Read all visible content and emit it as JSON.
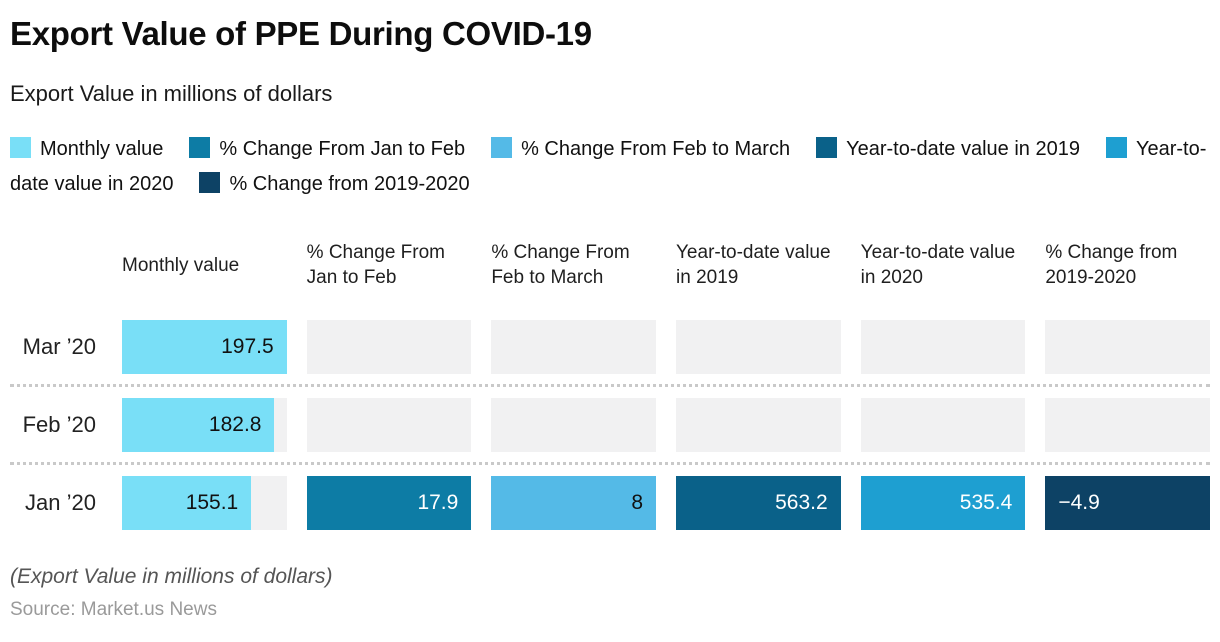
{
  "header": {
    "title": "Export Value of PPE During COVID-19",
    "subtitle": "Export Value in millions of dollars"
  },
  "legend": {
    "items": [
      {
        "label": "Monthly value",
        "color": "#79DFF7"
      },
      {
        "label": "% Change From Jan to Feb",
        "color": "#0D7CA5"
      },
      {
        "label": "% Change From Feb to March",
        "color": "#54BAE7"
      },
      {
        "label": "Year-to-date value in 2019",
        "color": "#0A6189"
      },
      {
        "label": "Year-to-date value in 2020",
        "color": "#1E9FD1"
      },
      {
        "label": "% Change from 2019-2020",
        "color": "#0D4265"
      }
    ]
  },
  "table": {
    "columns": [
      "Monthly value",
      "% Change From Jan to Feb",
      "% Change From Feb to March",
      "Year-to-date value in 2019",
      "Year-to-date value in 2020",
      "% Change from 2019-2020"
    ],
    "rows": [
      {
        "label": "Mar ’20",
        "cells": [
          {
            "value": "197.5",
            "fill": 100,
            "color": "#79DFF7",
            "text_color": "#111111",
            "align": "right"
          },
          {
            "value": "",
            "fill": 0,
            "color": "",
            "text_color": "",
            "align": "right"
          },
          {
            "value": "",
            "fill": 0,
            "color": "",
            "text_color": "",
            "align": "right"
          },
          {
            "value": "",
            "fill": 0,
            "color": "",
            "text_color": "",
            "align": "right"
          },
          {
            "value": "",
            "fill": 0,
            "color": "",
            "text_color": "",
            "align": "right"
          },
          {
            "value": "",
            "fill": 0,
            "color": "",
            "text_color": "",
            "align": "right"
          }
        ]
      },
      {
        "label": "Feb ’20",
        "cells": [
          {
            "value": "182.8",
            "fill": 92.6,
            "color": "#79DFF7",
            "text_color": "#111111",
            "align": "right"
          },
          {
            "value": "",
            "fill": 0,
            "color": "",
            "text_color": "",
            "align": "right"
          },
          {
            "value": "",
            "fill": 0,
            "color": "",
            "text_color": "",
            "align": "right"
          },
          {
            "value": "",
            "fill": 0,
            "color": "",
            "text_color": "",
            "align": "right"
          },
          {
            "value": "",
            "fill": 0,
            "color": "",
            "text_color": "",
            "align": "right"
          },
          {
            "value": "",
            "fill": 0,
            "color": "",
            "text_color": "",
            "align": "right"
          }
        ]
      },
      {
        "label": "Jan ’20",
        "cells": [
          {
            "value": "155.1",
            "fill": 78.5,
            "color": "#79DFF7",
            "text_color": "#111111",
            "align": "right"
          },
          {
            "value": "17.9",
            "fill": 100,
            "color": "#0D7CA5",
            "text_color": "#FFFFFF",
            "align": "right"
          },
          {
            "value": "8",
            "fill": 100,
            "color": "#54BAE7",
            "text_color": "#111111",
            "align": "right"
          },
          {
            "value": "563.2",
            "fill": 100,
            "color": "#0A6189",
            "text_color": "#FFFFFF",
            "align": "right"
          },
          {
            "value": "535.4",
            "fill": 100,
            "color": "#1E9FD1",
            "text_color": "#FFFFFF",
            "align": "right"
          },
          {
            "value": "−4.9",
            "fill": 100,
            "color": "#0D4265",
            "text_color": "#FFFFFF",
            "align": "left"
          }
        ]
      }
    ]
  },
  "footer": {
    "note": "(Export Value in millions of dollars)",
    "source": "Source: Market.us News"
  },
  "chart_data": {
    "type": "bar",
    "title": "Export Value of PPE During COVID-19",
    "subtitle": "Export Value in millions of dollars",
    "categories": [
      "Mar ’20",
      "Feb ’20",
      "Jan ’20"
    ],
    "series": [
      {
        "name": "Monthly value",
        "values": [
          197.5,
          182.8,
          155.1
        ],
        "color": "#79DFF7"
      },
      {
        "name": "% Change From Jan to Feb",
        "values": [
          null,
          null,
          17.9
        ],
        "color": "#0D7CA5"
      },
      {
        "name": "% Change From Feb to March",
        "values": [
          null,
          null,
          8
        ],
        "color": "#54BAE7"
      },
      {
        "name": "Year-to-date value in 2019",
        "values": [
          null,
          null,
          563.2
        ],
        "color": "#0A6189"
      },
      {
        "name": "Year-to-date value in 2020",
        "values": [
          null,
          null,
          535.4
        ],
        "color": "#1E9FD1"
      },
      {
        "name": "% Change from 2019-2020",
        "values": [
          null,
          null,
          -4.9
        ],
        "color": "#0D4265"
      }
    ],
    "orientation": "horizontal",
    "xlabel": "",
    "ylabel": "",
    "xlim": [
      0,
      197.5
    ],
    "grid": false,
    "legend_position": "top",
    "annotations": [
      "(Export Value in millions of dollars)",
      "Source: Market.us News"
    ]
  }
}
